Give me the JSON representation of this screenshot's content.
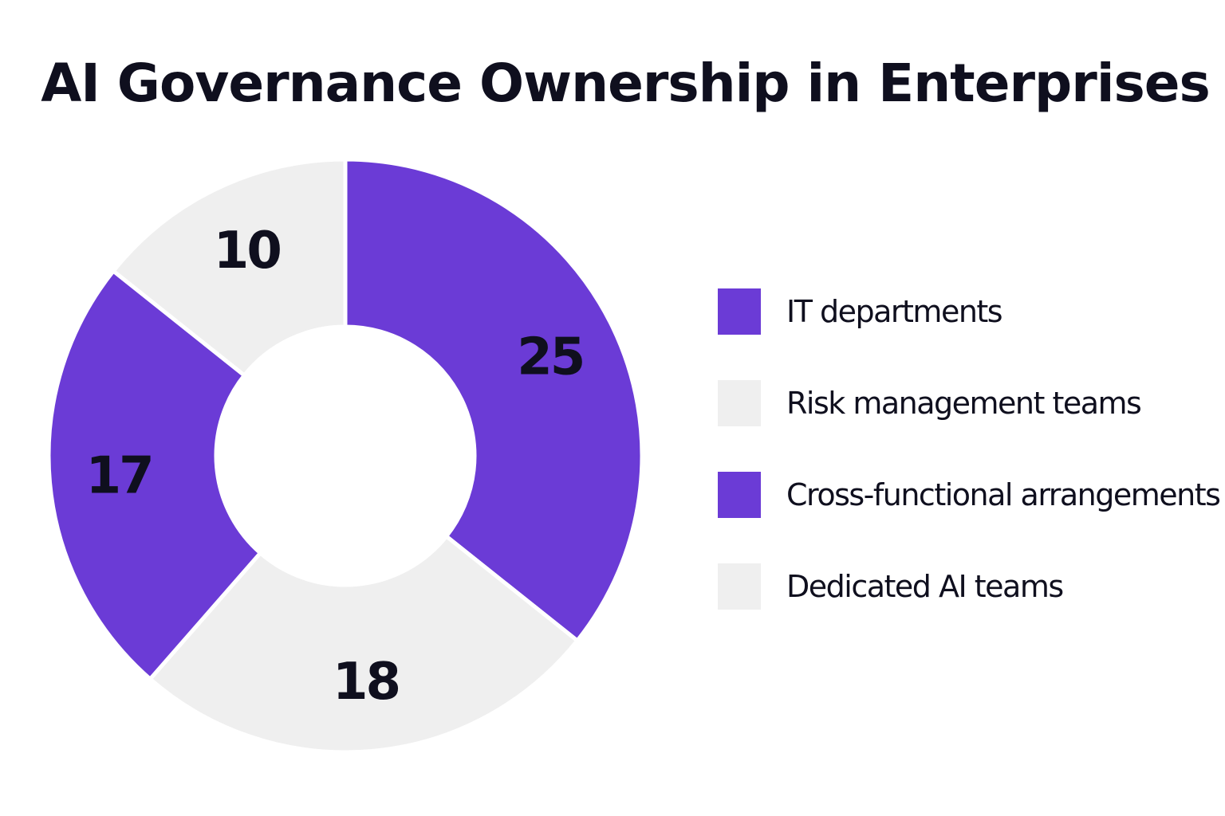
{
  "chart_data": {
    "type": "pie",
    "title": "AI Governance Ownership in Enterprises",
    "donut": true,
    "categories": [
      "IT departments",
      "Risk management teams",
      "Cross-functional arrangements",
      "Dedicated AI teams"
    ],
    "values": [
      25,
      18,
      17,
      10
    ],
    "colors": [
      "#6b3bd6",
      "#efefef",
      "#6b3bd6",
      "#efefef"
    ],
    "data_labels": [
      "25",
      "18",
      "17",
      "10"
    ],
    "legend": {
      "position": "right",
      "entries": [
        {
          "label": "IT departments",
          "color": "#6b3bd6"
        },
        {
          "label": "Risk management teams",
          "color": "#efefef"
        },
        {
          "label": "Cross-functional arrangements",
          "color": "#6b3bd6"
        },
        {
          "label": "Dedicated AI teams",
          "color": "#efefef"
        }
      ]
    }
  }
}
